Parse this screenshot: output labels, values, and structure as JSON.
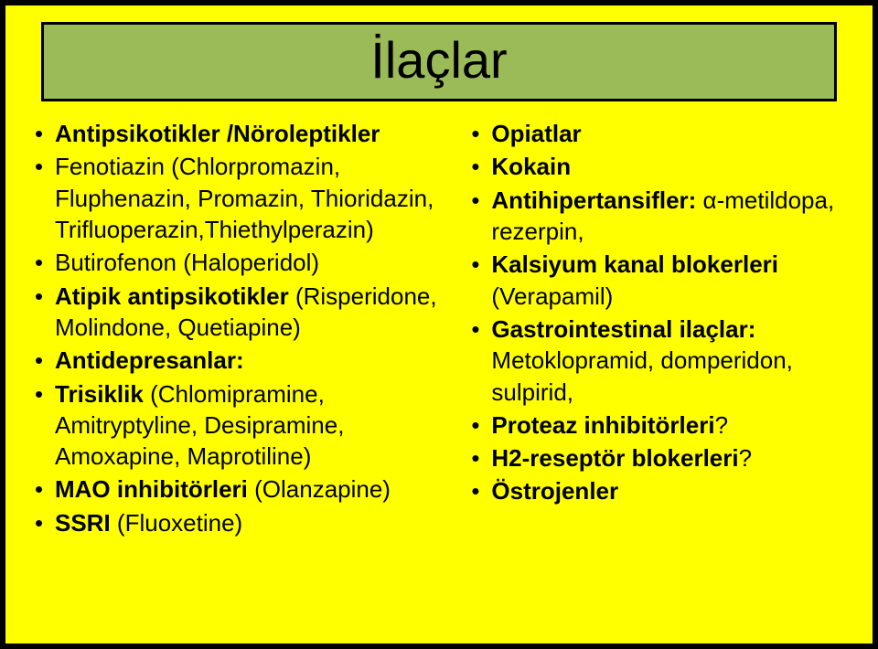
{
  "title": "İlaçlar",
  "leftColumn": [
    {
      "bold": "Antipsikotikler /Nöroleptikler",
      "rest": ""
    },
    {
      "bold": "",
      "rest": "Fenotiazin (Chlorpromazin, Fluphenazin, Promazin, Thioridazin, Trifluoperazin,Thiethylperazin)"
    },
    {
      "bold": "",
      "rest": "Butirofenon (Haloperidol)"
    },
    {
      "bold": "Atipik antipsikotikler ",
      "rest": "(Risperidone, Molindone, Quetiapine)"
    },
    {
      "bold": "Antidepresanlar:",
      "rest": ""
    },
    {
      "bold": "Trisiklik ",
      "rest": "(Chlomipramine, Amitryptyline, Desipramine, Amoxapine, Maprotiline)"
    },
    {
      "bold": "MAO inhibitörleri ",
      "rest": "(Olanzapine)"
    },
    {
      "bold": "SSRI ",
      "rest": "(Fluoxetine)"
    }
  ],
  "rightColumn": [
    {
      "bold": "Opiatlar",
      "rest": ""
    },
    {
      "bold": "Kokain",
      "rest": ""
    },
    {
      "bold": "Antihipertansifler: ",
      "rest": "α-metildopa, rezerpin,"
    },
    {
      "bold": "Kalsiyum kanal blokerleri ",
      "rest": "(Verapamil)"
    },
    {
      "bold": "Gastrointestinal ilaçlar: ",
      "rest": "Metoklopramid, domperidon, sulpirid,"
    },
    {
      "bold": "Proteaz inhibitörleri",
      "rest": "?"
    },
    {
      "bold": "H2-reseptör blokerleri",
      "rest": "?"
    },
    {
      "bold": "Östrojenler",
      "rest": ""
    }
  ]
}
